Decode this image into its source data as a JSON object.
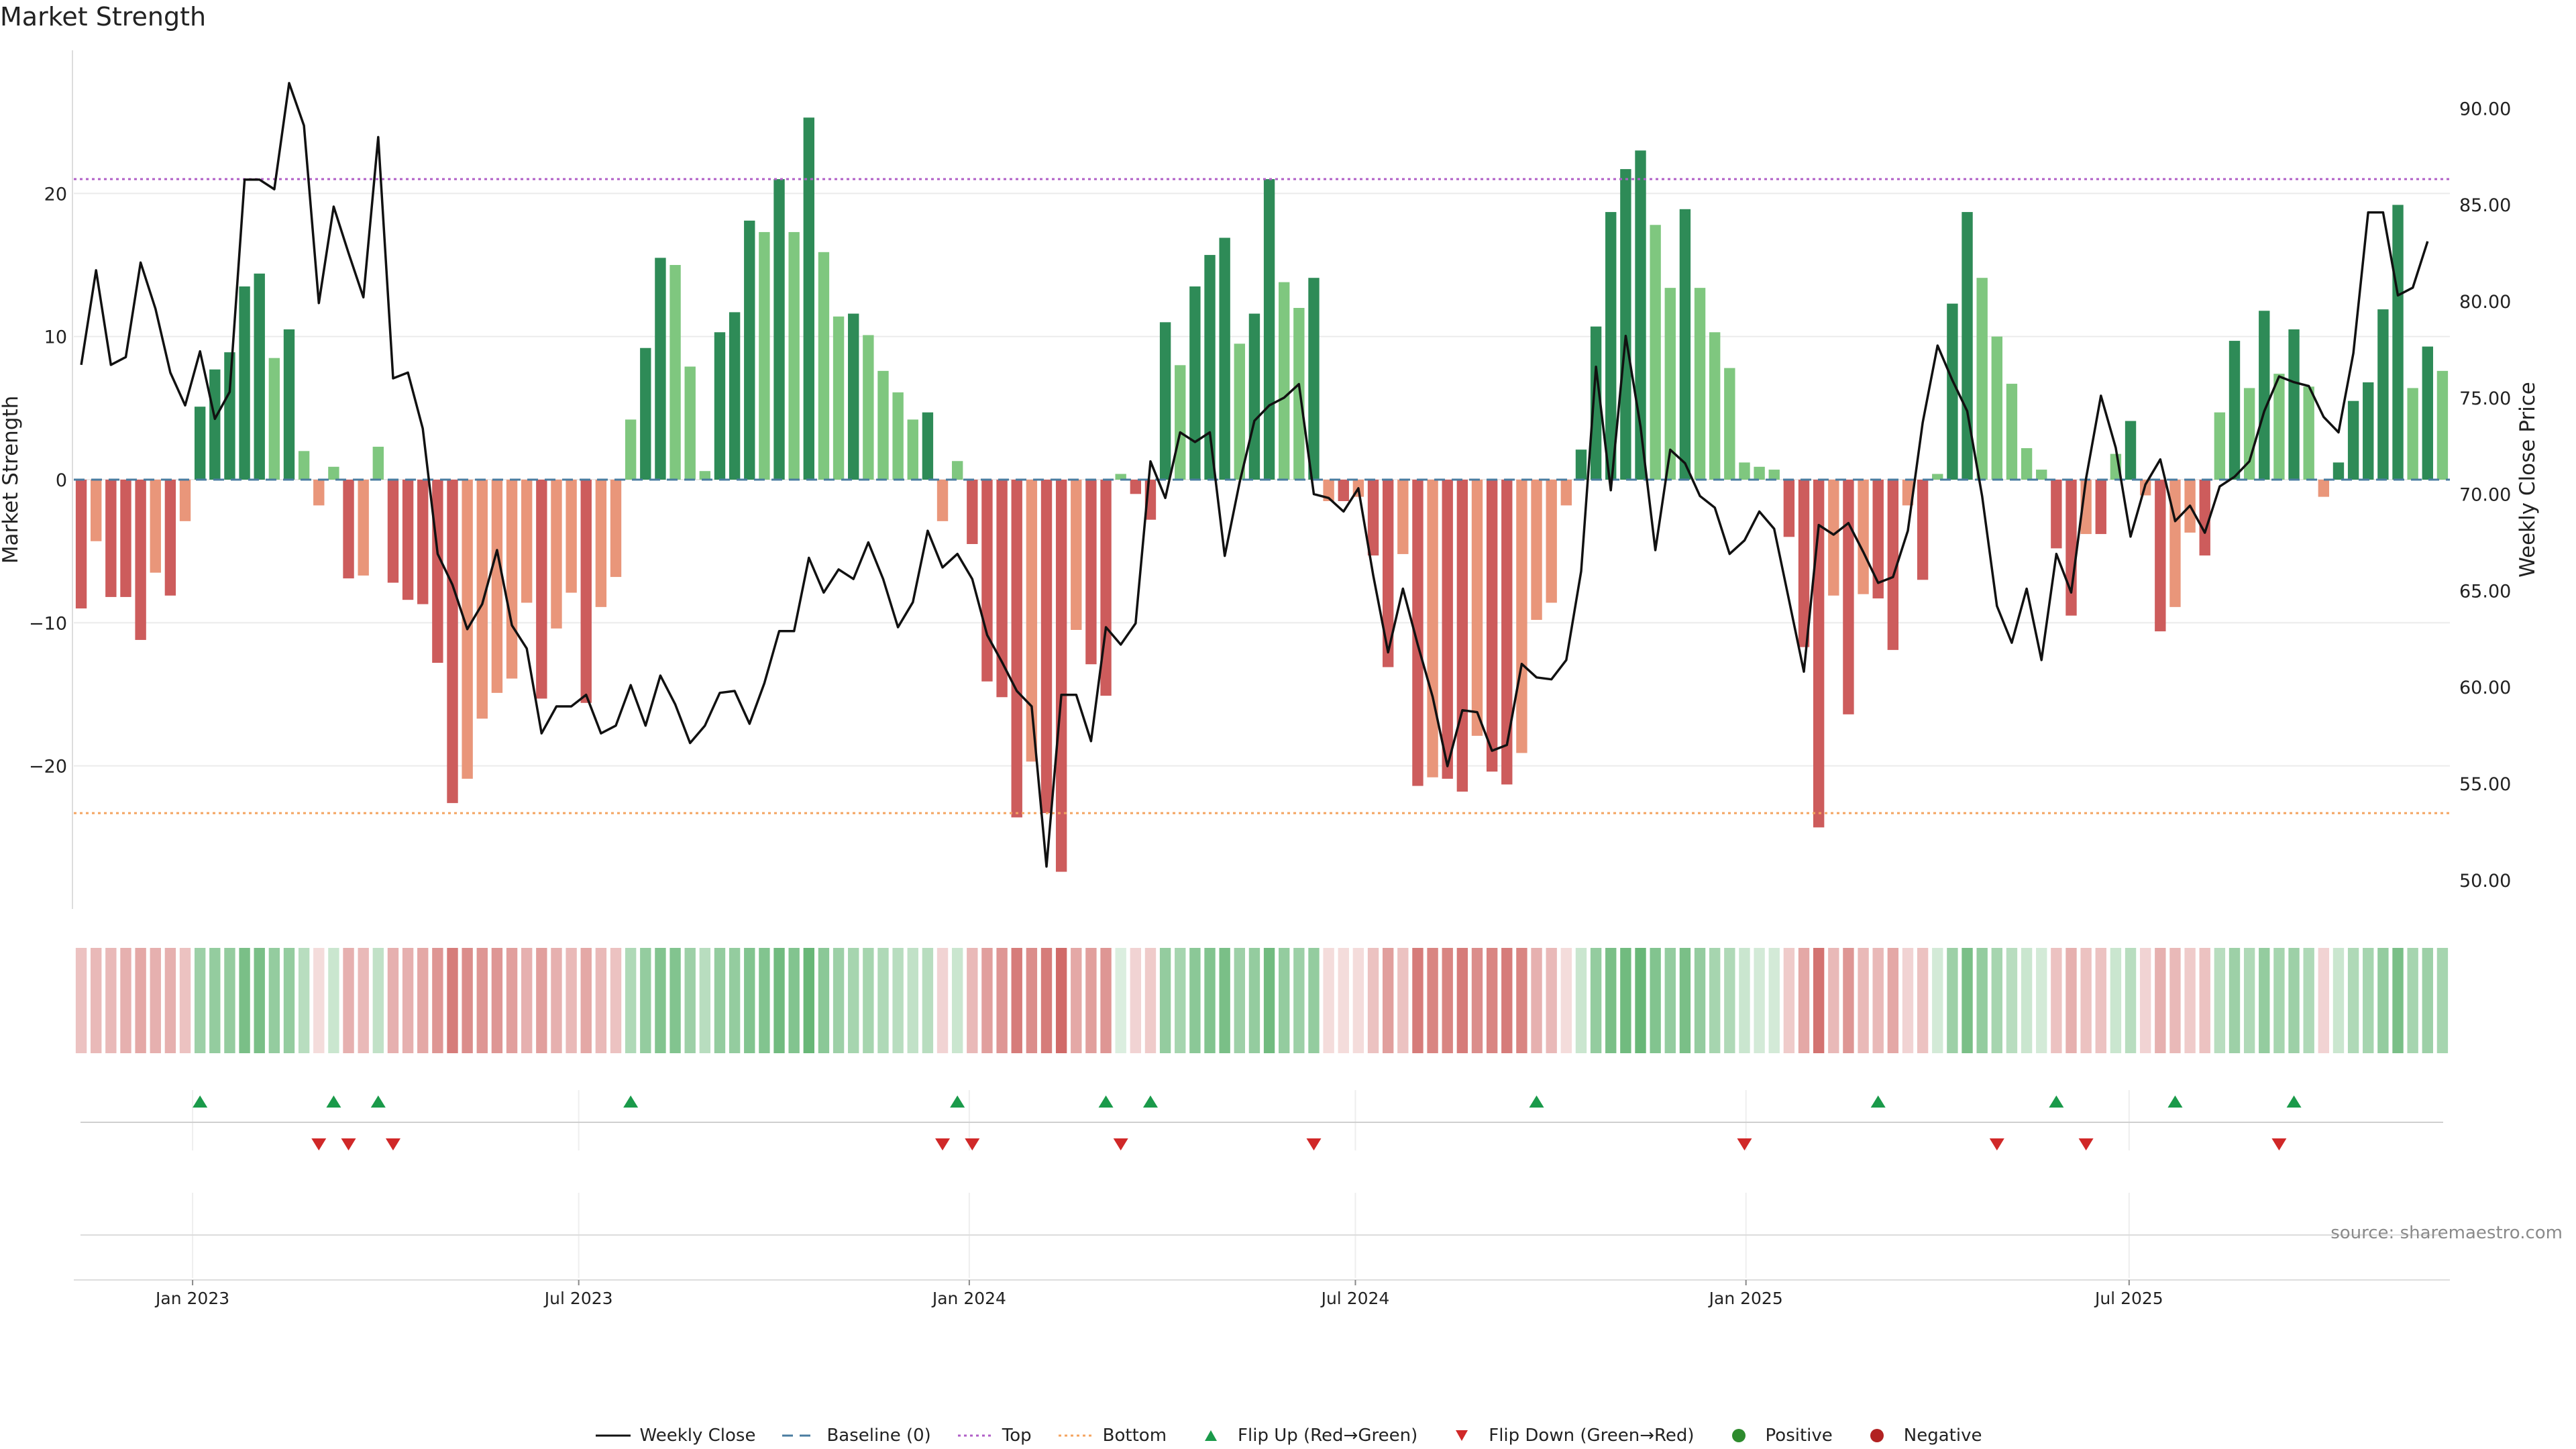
{
  "chart_data": {
    "type": "bar+line",
    "title": "Market Strength",
    "ylabel_left": "Market Strength",
    "ylabel_right": "Weekly Close Price",
    "ylim_left": [
      -30,
      30
    ],
    "ylim_right": [
      48.5,
      93
    ],
    "left_ticks": [
      20,
      10,
      0,
      -10,
      -20
    ],
    "left_tick_labels": [
      "20",
      "10",
      "0",
      "−10",
      "−20"
    ],
    "right_ticks": [
      90,
      85,
      80,
      75,
      70,
      65,
      60,
      55,
      50
    ],
    "right_tick_labels": [
      "90.00",
      "85.00",
      "80.00",
      "75.00",
      "70.00",
      "65.00",
      "60.00",
      "55.00",
      "50.00"
    ],
    "top_threshold": 21,
    "bottom_threshold": -23.3,
    "start_date": "2022-11-07",
    "x_ticks": [
      {
        "label": "Jan 2023",
        "week": 8
      },
      {
        "label": "Jul 2023",
        "week": 34
      },
      {
        "label": "Jan 2024",
        "week": 60.3
      },
      {
        "label": "Jul 2024",
        "week": 86.3
      },
      {
        "label": "Jan 2025",
        "week": 112.6
      },
      {
        "label": "Jul 2025",
        "week": 138.4
      }
    ],
    "strength": [
      -9,
      -4.3,
      -8.2,
      -8.2,
      -11.2,
      -6.5,
      -8.1,
      -2.9,
      5.1,
      7.7,
      8.9,
      13.5,
      14.4,
      8.5,
      10.5,
      2,
      -1.8,
      0.9,
      -6.9,
      -6.7,
      2.3,
      -7.2,
      -8.4,
      -8.7,
      -12.8,
      -22.6,
      -20.9,
      -16.7,
      -14.9,
      -13.9,
      -8.6,
      -15.3,
      -10.4,
      -7.9,
      -15.6,
      -8.9,
      -6.8,
      4.2,
      9.2,
      15.5,
      15,
      7.9,
      0.6,
      10.3,
      11.7,
      18.1,
      17.3,
      21,
      17.3,
      25.3,
      15.9,
      11.4,
      11.6,
      10.1,
      7.6,
      6.1,
      4.2,
      4.7,
      -2.9,
      1.3,
      -4.5,
      -14.1,
      -15.2,
      -23.6,
      -19.7,
      -23.3,
      -27.4,
      -10.5,
      -12.9,
      -15.1,
      0.4,
      -1,
      -2.8,
      11,
      8,
      13.5,
      15.7,
      16.9,
      9.5,
      11.6,
      21,
      13.8,
      12,
      14.1,
      -1.5,
      -1.5,
      -1.2,
      -5.3,
      -13.1,
      -5.2,
      -21.4,
      -20.8,
      -20.9,
      -21.8,
      -17.9,
      -20.4,
      -21.3,
      -19.1,
      -9.8,
      -8.6,
      -1.8,
      2.1,
      10.7,
      18.7,
      21.7,
      23,
      17.8,
      13.4,
      18.9,
      13.4,
      10.3,
      7.8,
      1.2,
      0.9,
      0.7,
      -4,
      -11.7,
      -24.3,
      -8.1,
      -16.4,
      -8,
      -8.3,
      -11.9,
      -1.8,
      -7,
      0.4,
      12.3,
      18.7,
      14.1,
      10,
      6.7,
      2.2,
      0.7,
      -4.8,
      -9.5,
      -3.8,
      -3.8,
      1.8,
      4.1,
      -1.1,
      -10.6,
      -8.9,
      -3.7,
      -5.3,
      4.7,
      9.7,
      6.4,
      11.8,
      7.4,
      10.5,
      6.5,
      -1.2,
      1.2,
      5.5,
      6.8,
      11.9,
      19.2,
      6.4,
      9.3,
      7.6
    ],
    "close": [
      76.7,
      81.6,
      76.7,
      77.1,
      82,
      79.6,
      76.3,
      74.6,
      77.4,
      73.9,
      75.3,
      86.3,
      86.3,
      85.8,
      91.3,
      89.1,
      79.9,
      84.9,
      82.5,
      80.2,
      88.5,
      76,
      76.3,
      73.4,
      66.9,
      65.3,
      63,
      64.3,
      67.1,
      63.2,
      62,
      57.6,
      59,
      59,
      59.6,
      57.6,
      58,
      60.1,
      58,
      60.6,
      59.1,
      57.1,
      58,
      59.7,
      59.8,
      58.1,
      60.2,
      62.9,
      62.9,
      66.7,
      64.9,
      66.1,
      65.6,
      67.5,
      65.6,
      63.1,
      64.4,
      68.1,
      66.2,
      66.9,
      65.6,
      62.7,
      61.3,
      59.8,
      59,
      50.7,
      59.6,
      59.6,
      57.2,
      63.1,
      62.2,
      63.3,
      71.7,
      69.8,
      73.2,
      72.7,
      73.2,
      66.8,
      70.6,
      73.8,
      74.6,
      75,
      75.7,
      70,
      69.8,
      69.1,
      70.3,
      65.8,
      61.8,
      65.1,
      62.2,
      59.5,
      55.9,
      58.8,
      58.7,
      56.7,
      57,
      61.2,
      60.5,
      60.4,
      61.4,
      66,
      76.6,
      70.2,
      78.2,
      73.5,
      67.1,
      72.3,
      71.6,
      69.9,
      69.3,
      66.9,
      67.6,
      69.1,
      68.2,
      64.5,
      60.8,
      68.4,
      67.9,
      68.5,
      67,
      65.4,
      65.7,
      68.1,
      73.7,
      77.7,
      75.9,
      74.3,
      69.9,
      64.2,
      62.3,
      65.1,
      61.4,
      66.9,
      64.9,
      70.8,
      75.1,
      72.4,
      67.8,
      70.5,
      71.8,
      68.6,
      69.4,
      68,
      70.4,
      70.9,
      71.7,
      74.3,
      76.1,
      75.8,
      75.6,
      74,
      73.2,
      77.3,
      84.6,
      84.6,
      80.3,
      80.7,
      83.1
    ],
    "heat_intensity": [
      0.35,
      0.4,
      0.4,
      0.45,
      0.5,
      0.45,
      0.45,
      0.35,
      0.55,
      0.6,
      0.6,
      0.75,
      0.75,
      0.6,
      0.6,
      0.4,
      0.2,
      0.3,
      0.45,
      0.4,
      0.35,
      0.45,
      0.45,
      0.5,
      0.6,
      0.75,
      0.65,
      0.6,
      0.6,
      0.55,
      0.45,
      0.55,
      0.45,
      0.4,
      0.5,
      0.4,
      0.35,
      0.45,
      0.6,
      0.7,
      0.7,
      0.55,
      0.4,
      0.6,
      0.6,
      0.7,
      0.7,
      0.8,
      0.7,
      0.85,
      0.65,
      0.55,
      0.5,
      0.5,
      0.45,
      0.4,
      0.35,
      0.4,
      0.25,
      0.3,
      0.4,
      0.55,
      0.6,
      0.75,
      0.65,
      0.75,
      0.85,
      0.5,
      0.55,
      0.6,
      0.2,
      0.25,
      0.3,
      0.6,
      0.5,
      0.65,
      0.7,
      0.75,
      0.55,
      0.6,
      0.8,
      0.6,
      0.55,
      0.6,
      0.2,
      0.2,
      0.2,
      0.35,
      0.55,
      0.35,
      0.75,
      0.7,
      0.7,
      0.75,
      0.65,
      0.7,
      0.75,
      0.7,
      0.45,
      0.4,
      0.2,
      0.3,
      0.6,
      0.75,
      0.8,
      0.85,
      0.7,
      0.6,
      0.75,
      0.6,
      0.5,
      0.45,
      0.3,
      0.25,
      0.25,
      0.3,
      0.5,
      0.8,
      0.4,
      0.6,
      0.4,
      0.4,
      0.5,
      0.25,
      0.35,
      0.25,
      0.55,
      0.75,
      0.6,
      0.5,
      0.4,
      0.3,
      0.25,
      0.35,
      0.45,
      0.35,
      0.35,
      0.3,
      0.4,
      0.25,
      0.45,
      0.4,
      0.3,
      0.35,
      0.4,
      0.55,
      0.45,
      0.6,
      0.5,
      0.55,
      0.45,
      0.25,
      0.3,
      0.45,
      0.5,
      0.6,
      0.75,
      0.5,
      0.55,
      0.5
    ],
    "flip_up_weeks": [
      8,
      17,
      20,
      37,
      59,
      69,
      72,
      98,
      121,
      133,
      141,
      149
    ],
    "flip_down_weeks": [
      16,
      18,
      21,
      58,
      60,
      70,
      83,
      112,
      129,
      135,
      148
    ]
  },
  "legend": {
    "weekly_close": "Weekly Close",
    "baseline": "Baseline (0)",
    "top": "Top",
    "bottom": "Bottom",
    "flip_up": "Flip Up (Red→Green)",
    "flip_down": "Flip Down (Green→Red)",
    "positive": "Positive",
    "negative": "Negative"
  },
  "colors": {
    "green_dark": "#2e8b57",
    "green_light": "#7fc77f",
    "red_dark": "#cd5c5c",
    "red_light": "#e9967a",
    "line": "#111111",
    "baseline": "#4a7ca0",
    "top_line": "#b05fc7",
    "bottom_line": "#f4a460",
    "flip_up": "#1a9a4a",
    "flip_down": "#d02828",
    "positive_dot": "#2e8b2e",
    "negative_dot": "#b22222"
  },
  "source": "source: sharemaestro.com"
}
